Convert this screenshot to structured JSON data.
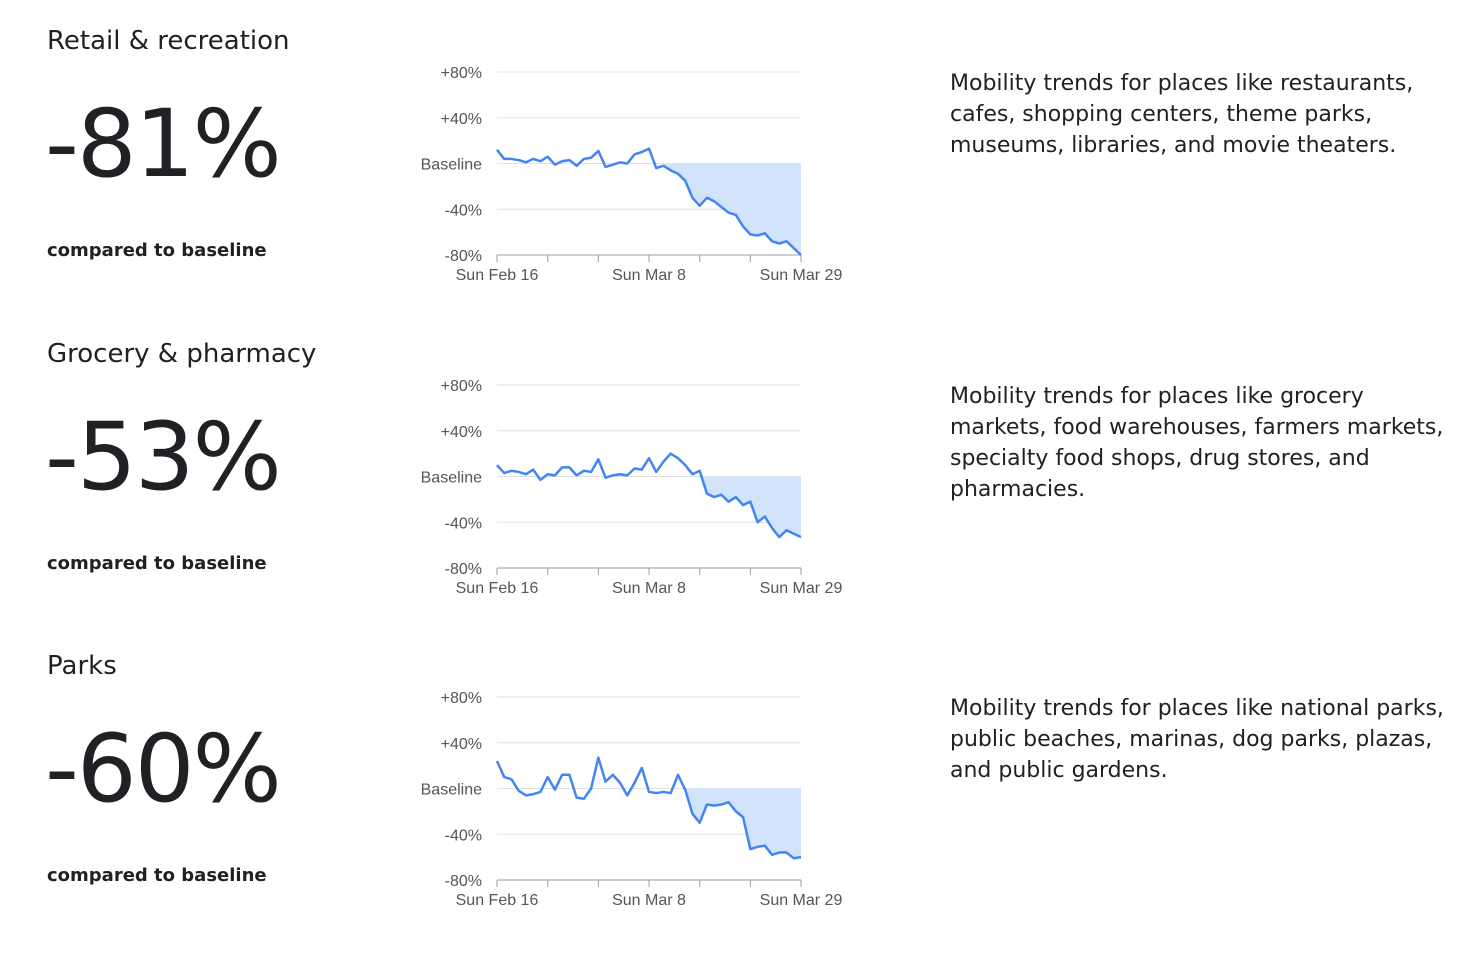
{
  "sections": [
    {
      "title": "Retail & recreation",
      "percent": "-81%",
      "comparison": "compared to baseline",
      "description": "Mobility trends for places like restaurants, cafes, shopping centers, theme parks, museums, libraries, and movie theaters."
    },
    {
      "title": "Grocery & pharmacy",
      "percent": "-53%",
      "comparison": "compared to baseline",
      "description": "Mobility trends for places like grocery markets, food warehouses, farmers markets, specialty food shops, drug stores, and pharmacies."
    },
    {
      "title": "Parks",
      "percent": "-60%",
      "comparison": "compared to baseline",
      "description": "Mobility trends for places like national parks, public beaches, marinas, dog parks, plazas, and public gardens."
    }
  ],
  "colors": {
    "line": "#4285f4",
    "fill": "#d2e3fc",
    "grid": "#e0e0e0"
  },
  "chart_data": [
    {
      "type": "line",
      "title": "",
      "xlabel": "",
      "ylabel": "",
      "y_tick_labels": [
        "+80%",
        "+40%",
        "Baseline",
        "-40%",
        "-80%"
      ],
      "y_tick_values": [
        80,
        40,
        0,
        -40,
        -80
      ],
      "x_tick_labels": [
        "Sun Feb 16",
        "Sun Mar 8",
        "Sun Mar 29"
      ],
      "x_tick_index": [
        0,
        21,
        42
      ],
      "x_minor_ticks": [
        7,
        14,
        28,
        35
      ],
      "ylim": [
        -80,
        80
      ],
      "fill_below_baseline_from": 23,
      "series": [
        {
          "values": [
            12,
            4,
            4,
            3,
            1,
            4,
            2,
            6,
            -1,
            2,
            3,
            -2,
            4,
            5,
            11,
            -3,
            -1,
            1,
            0,
            8,
            10,
            13,
            -4,
            -2,
            -6,
            -9,
            -15,
            -30,
            -37,
            -30,
            -33,
            -38,
            -43,
            -45,
            -55,
            -62,
            -63,
            -61,
            -68,
            -70,
            -68,
            -74,
            -80
          ]
        }
      ]
    },
    {
      "type": "line",
      "title": "",
      "xlabel": "",
      "ylabel": "",
      "y_tick_labels": [
        "+80%",
        "+40%",
        "Baseline",
        "-40%",
        "-80%"
      ],
      "y_tick_values": [
        80,
        40,
        0,
        -40,
        -80
      ],
      "x_tick_labels": [
        "Sun Feb 16",
        "Sun Mar 8",
        "Sun Mar 29"
      ],
      "x_tick_index": [
        0,
        21,
        42
      ],
      "x_minor_ticks": [
        7,
        14,
        28,
        35
      ],
      "ylim": [
        -80,
        80
      ],
      "fill_below_baseline_from": 28,
      "series": [
        {
          "values": [
            10,
            3,
            5,
            4,
            2,
            6,
            -3,
            2,
            1,
            8,
            8,
            1,
            5,
            4,
            15,
            -1,
            1,
            2,
            1,
            7,
            6,
            16,
            4,
            13,
            20,
            16,
            10,
            2,
            5,
            -15,
            -18,
            -16,
            -22,
            -18,
            -25,
            -22,
            -40,
            -35,
            -45,
            -53,
            -47,
            -50,
            -53
          ]
        }
      ]
    },
    {
      "type": "line",
      "title": "",
      "xlabel": "",
      "ylabel": "",
      "y_tick_labels": [
        "+80%",
        "+40%",
        "Baseline",
        "-40%",
        "-80%"
      ],
      "y_tick_values": [
        80,
        40,
        0,
        -40,
        -80
      ],
      "x_tick_labels": [
        "Sun Feb 16",
        "Sun Mar 8",
        "Sun Mar 29"
      ],
      "x_tick_index": [
        0,
        21,
        42
      ],
      "x_minor_ticks": [
        7,
        14,
        28,
        35
      ],
      "ylim": [
        -80,
        80
      ],
      "fill_below_baseline_from": 25,
      "series": [
        {
          "values": [
            24,
            10,
            8,
            -2,
            -6,
            -5,
            -3,
            10,
            -1,
            12,
            12,
            -8,
            -9,
            0,
            27,
            6,
            12,
            5,
            -6,
            5,
            18,
            -3,
            -4,
            -3,
            -4,
            12,
            -1,
            -22,
            -30,
            -14,
            -15,
            -14,
            -12,
            -20,
            -25,
            -53,
            -51,
            -50,
            -58,
            -56,
            -56,
            -61,
            -60
          ]
        }
      ]
    }
  ]
}
